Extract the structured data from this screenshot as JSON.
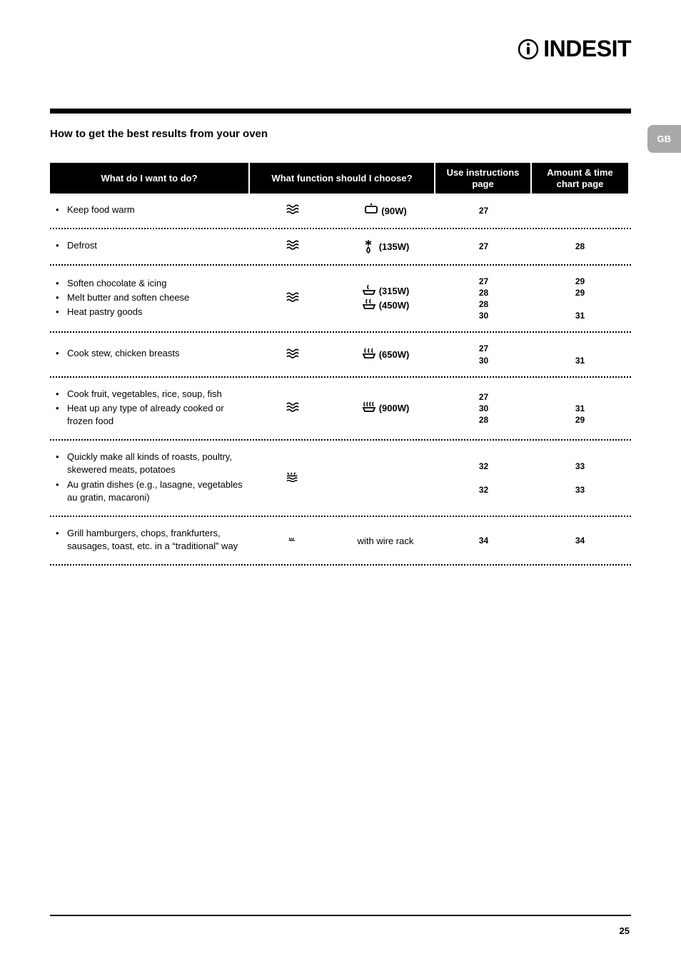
{
  "brand": "INDESIT",
  "lang_tab": "GB",
  "page_number": "25",
  "heading": "How to get the best results from your oven",
  "table": {
    "headers": {
      "what": "What do I want to do?",
      "func": "What function should I choose?",
      "use": "Use instructions page",
      "amt": "Amount & time chart page"
    },
    "rows": [
      {
        "tasks": [
          "Keep food warm"
        ],
        "func1_icon": "waves",
        "func2": [
          {
            "icon": "box-dot",
            "label": "(90W)"
          }
        ],
        "use": "27",
        "amt": ""
      },
      {
        "tasks": [
          "Defrost"
        ],
        "func1_icon": "waves",
        "func2": [
          {
            "icon": "snowflake-drop",
            "label": "(135W)"
          }
        ],
        "use": "27",
        "amt": "28"
      },
      {
        "tasks": [
          "Soften chocolate & icing",
          "Melt butter and soften cheese",
          "Heat pastry goods"
        ],
        "func1_icon": "waves",
        "func2": [
          {
            "icon": "dish-1",
            "label": "(315W)"
          },
          {
            "icon": "dish-2",
            "label": "(450W)"
          }
        ],
        "use": "27\n28\n28\n30",
        "amt": "29\n29\n\n31"
      },
      {
        "tasks": [
          "Cook stew, chicken breasts"
        ],
        "func1_icon": "waves",
        "func2": [
          {
            "icon": "dish-3",
            "label": "(650W)"
          }
        ],
        "use": "27\n30",
        "amt": "\n31"
      },
      {
        "tasks": [
          "Cook fruit, vegetables, rice, soup, fish",
          "Heat up any type of already cooked or frozen food"
        ],
        "func1_icon": "waves",
        "func2": [
          {
            "icon": "dish-4",
            "label": "(900W)"
          }
        ],
        "use": "27\n30\n28",
        "amt": "\n31\n29"
      },
      {
        "tasks": [
          "Quickly make all kinds of roasts, poultry, skewered meats, potatoes",
          "Au gratin dishes (e.g., lasagne, vegetables au gratin, macaroni)"
        ],
        "func1_icon": "grill-waves",
        "func2": [],
        "use": "32\n\n32",
        "amt": "33\n\n33"
      },
      {
        "tasks": [
          "Grill hamburgers, chops, frankfurters, sausages, toast, etc. in a “traditional” way"
        ],
        "func1_icon": "grill",
        "func2_text": "with wire rack",
        "func2": [],
        "use": "34",
        "amt": "34"
      }
    ]
  },
  "styles": {
    "page_bg": "#ffffff",
    "header_bg": "#000000",
    "header_fg": "#ffffff",
    "tab_bg": "#a9a9a9",
    "font_body": 13,
    "font_heading": 15
  }
}
